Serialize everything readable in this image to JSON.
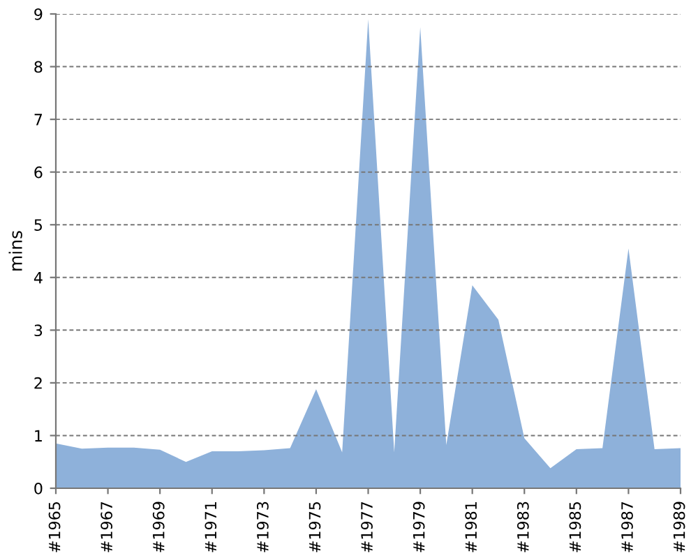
{
  "chart_data": {
    "type": "area",
    "ylabel": "mins",
    "categories": [
      "#1965",
      null,
      "#1967",
      null,
      "#1969",
      null,
      "#1971",
      null,
      "#1973",
      null,
      "#1975",
      null,
      "#1977",
      null,
      "#1979",
      null,
      "#1981",
      null,
      "#1983",
      null,
      "#1985",
      null,
      "#1987",
      null,
      "#1989"
    ],
    "series": [
      {
        "color": "#8eb1da",
        "values": [
          0.85,
          0.75,
          0.77,
          0.77,
          0.73,
          0.5,
          0.7,
          0.7,
          0.72,
          0.76,
          1.88,
          0.68,
          8.9,
          0.68,
          8.75,
          0.82,
          3.85,
          3.2,
          0.95,
          0.38,
          0.74,
          0.76,
          4.55,
          0.74,
          0.76
        ]
      }
    ],
    "ylim": [
      0,
      9
    ],
    "yticks": [
      0,
      1,
      2,
      3,
      4,
      5,
      6,
      7,
      8,
      9
    ],
    "grid": "y"
  }
}
